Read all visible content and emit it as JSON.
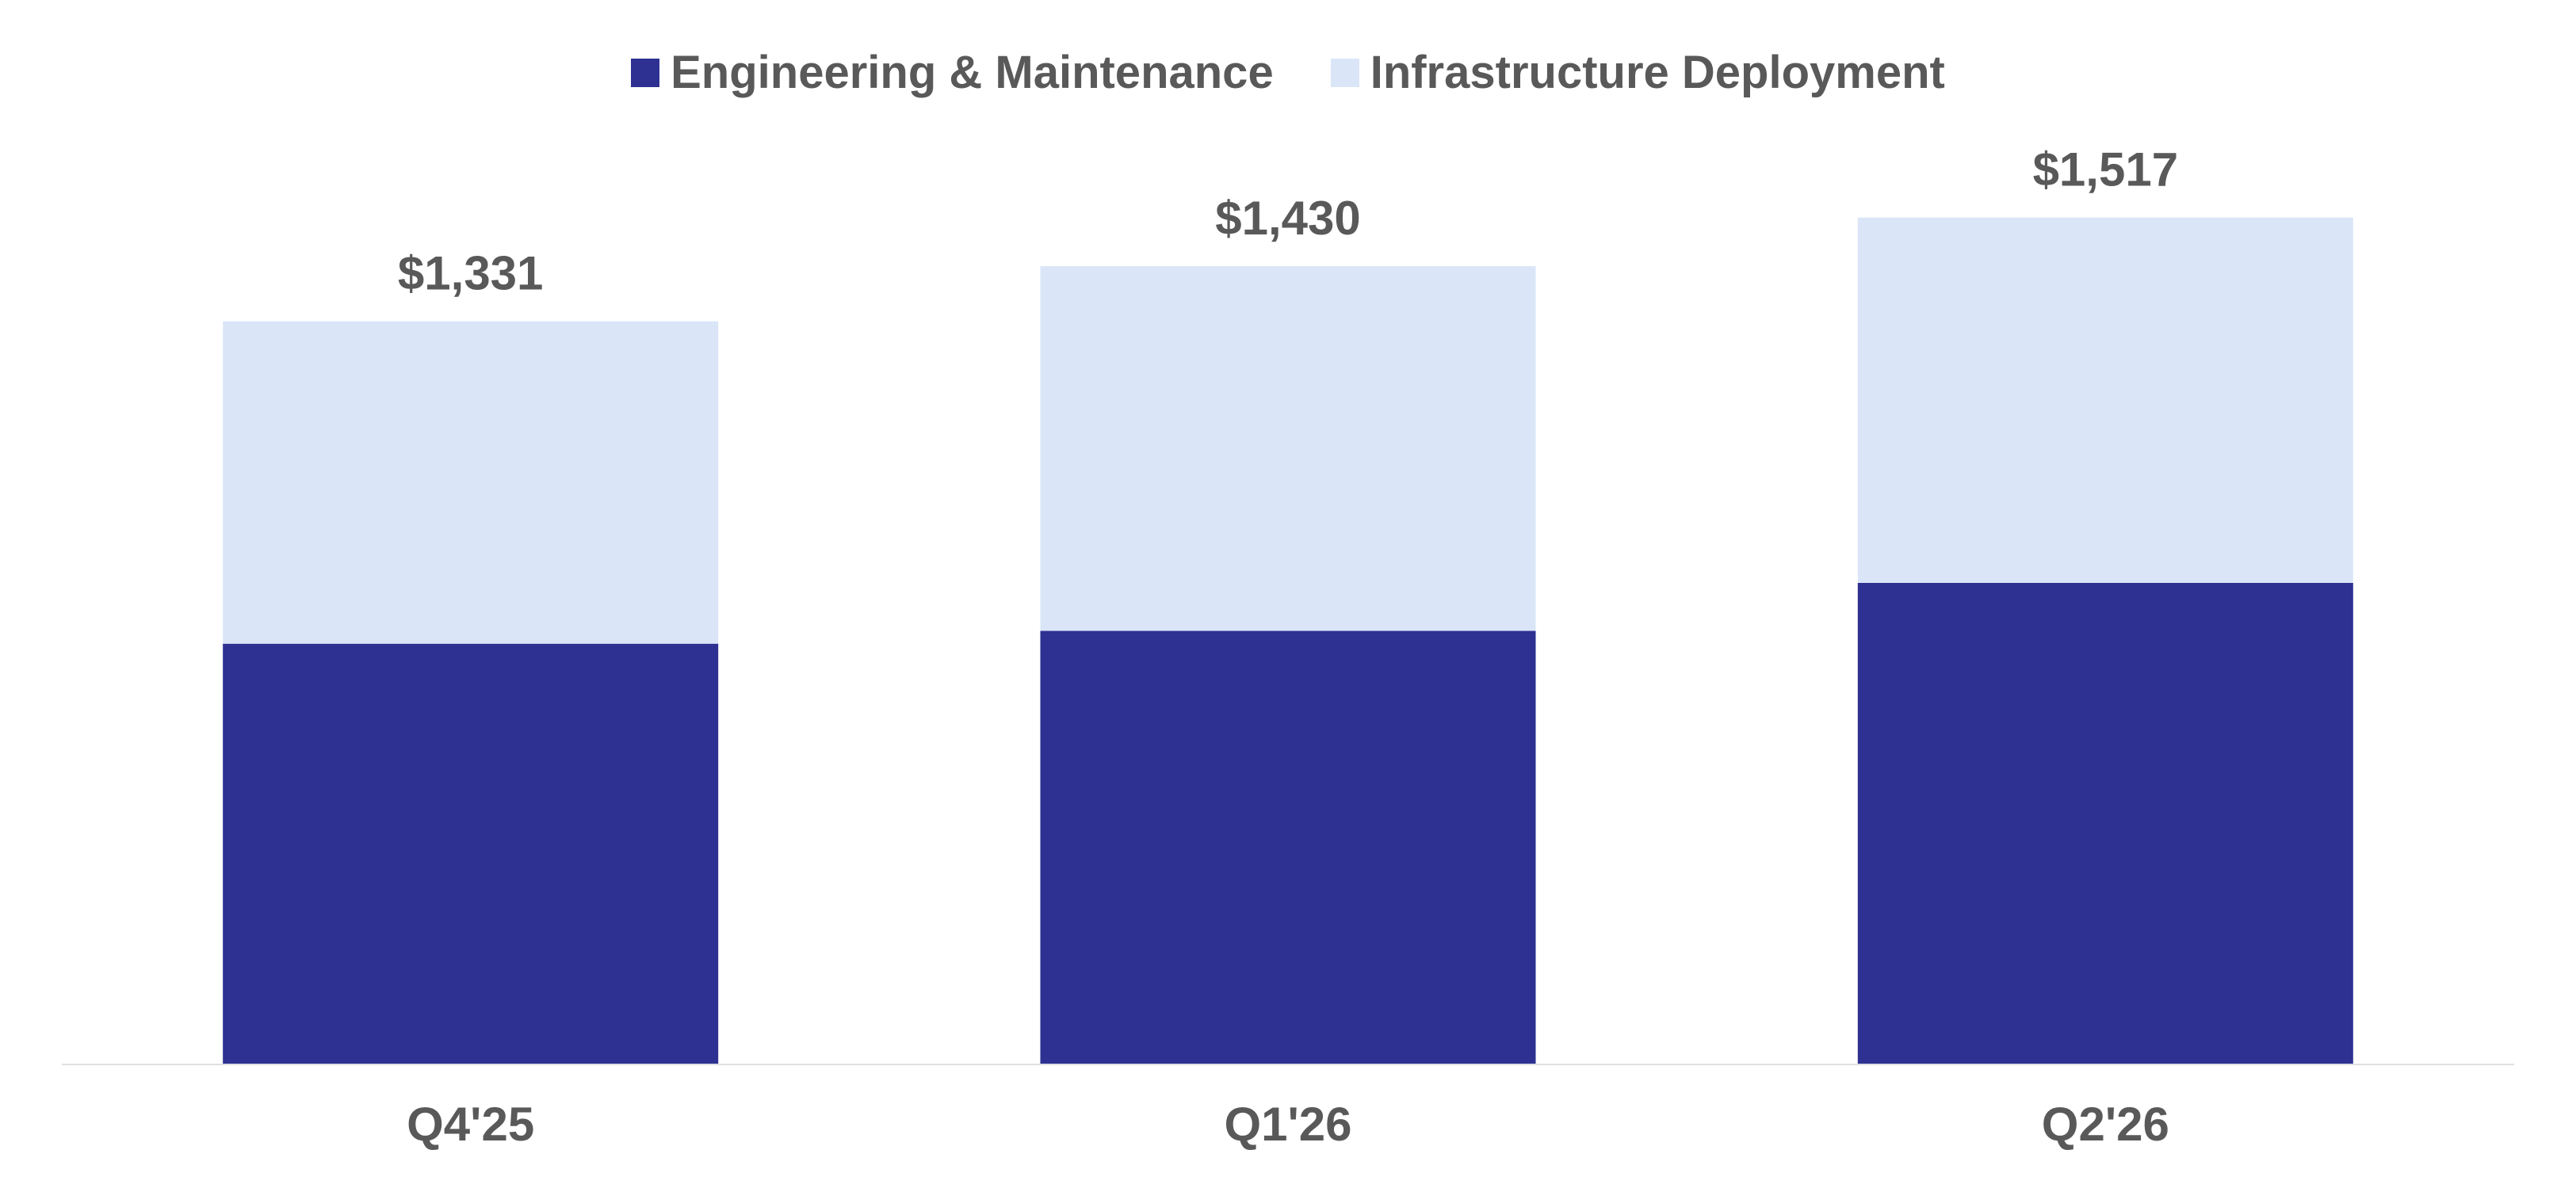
{
  "chart_data": {
    "type": "bar",
    "stacked": true,
    "categories": [
      "Q4'25",
      "Q1'26",
      "Q2'26"
    ],
    "series": [
      {
        "name": "Engineering & Maintenance",
        "color": "#2E3192",
        "values": [
          753,
          776,
          862
        ]
      },
      {
        "name": "Infrastructure Deployment",
        "color": "#DAE6F8",
        "values": [
          578,
          654,
          655
        ]
      }
    ],
    "totals": [
      1331,
      1430,
      1517
    ],
    "total_labels": [
      "$1,331",
      "$1,430",
      "$1,517"
    ],
    "title": "",
    "xlabel": "",
    "ylabel": "",
    "ylim": [
      0,
      1650
    ],
    "grid": false,
    "legend_position": "top-center",
    "text_color": "#595959",
    "axis_color": "#E0E0E0"
  }
}
